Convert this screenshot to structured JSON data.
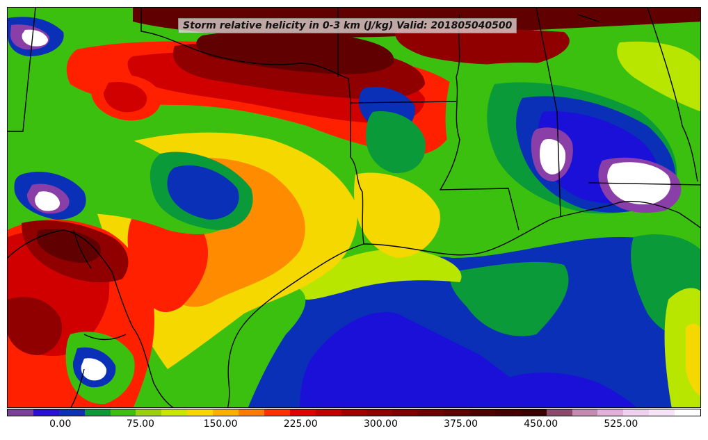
{
  "map": {
    "title": "Storm relative helicity in 0-3 km (J/kg) Valid: 201805040500"
  },
  "colorbar": {
    "colors": [
      "#7b3f98",
      "#2a10d0",
      "#1030b8",
      "#0a9a3a",
      "#3cc010",
      "#9ad010",
      "#c8e600",
      "#f5d800",
      "#ffae00",
      "#ff7a00",
      "#ff3000",
      "#e00000",
      "#c00000",
      "#a00000",
      "#900000",
      "#800000",
      "#700000",
      "#600000",
      "#500000",
      "#440000",
      "#380000",
      "#8a4a6a",
      "#c48ab0",
      "#e0b0d8",
      "#f0d0f0",
      "#f8e4f8",
      "#ffffff"
    ],
    "tick_labels": [
      "0.00",
      "75.00",
      "150.00",
      "225.00",
      "300.00",
      "375.00",
      "450.00",
      "525.00"
    ],
    "tick_values": [
      0,
      75,
      150,
      225,
      300,
      375,
      450,
      525
    ],
    "range": [
      -50,
      600
    ]
  },
  "palette": {
    "white": "#ffffff",
    "violet": "#8a3fa8",
    "blue": "#1a10d8",
    "navy": "#0a30b8",
    "dark_green": "#0a9a3a",
    "green": "#3cc010",
    "yellow_green": "#b8e600",
    "yellow": "#f5d800",
    "orange": "#ff8c00",
    "red": "#ff2000",
    "crimson": "#d00000",
    "dark_red": "#900000",
    "maroon": "#600000",
    "boundary": "#000000"
  }
}
